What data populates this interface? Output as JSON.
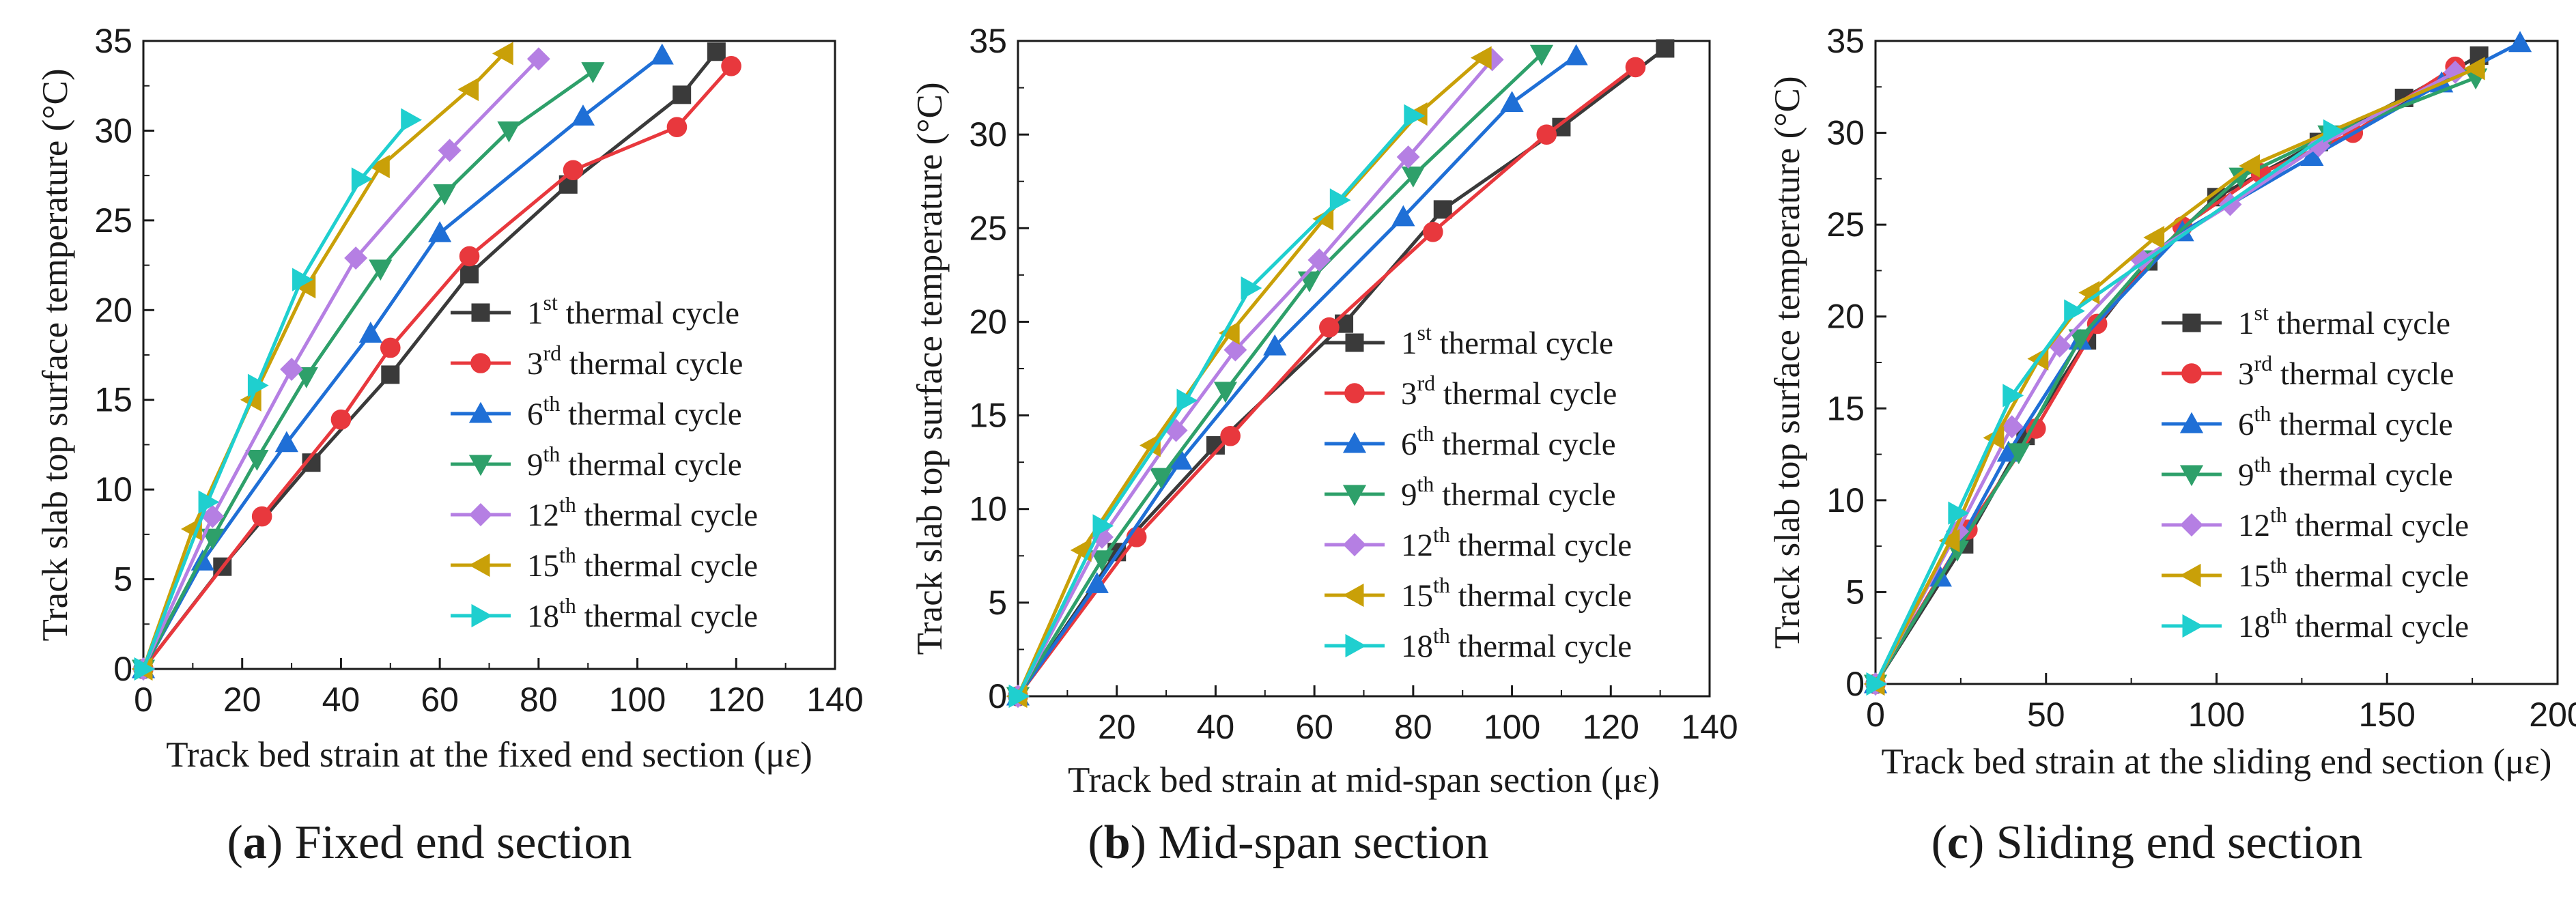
{
  "series_style": [
    {
      "color": "#3a3a3a",
      "marker": "square"
    },
    {
      "color": "#e8383d",
      "marker": "circle"
    },
    {
      "color": "#1f6fd6",
      "marker": "triangle-up"
    },
    {
      "color": "#2ea06a",
      "marker": "triangle-down"
    },
    {
      "color": "#b57fe3",
      "marker": "diamond"
    },
    {
      "color": "#c9a008",
      "marker": "triangle-left"
    },
    {
      "color": "#1fcfcf",
      "marker": "triangle-right"
    }
  ],
  "chart_data": [
    {
      "type": "line",
      "panel": "a",
      "caption_letter": "a",
      "caption_text": "Fixed end section",
      "xlabel": "Track bed strain at the fixed end section (με)",
      "ylabel": "Track slab top surface temperature (°C)",
      "xlim": [
        0,
        140
      ],
      "ylim": [
        0,
        35
      ],
      "xticks": [
        0,
        20,
        40,
        60,
        80,
        100,
        120,
        140
      ],
      "yticks": [
        0,
        5,
        10,
        15,
        20,
        25,
        30,
        35
      ],
      "legend_position": "right-center",
      "series": [
        {
          "ord": "1",
          "sup": "st",
          "name": " thermal cycle",
          "x": [
            0,
            16,
            34,
            50,
            66,
            86,
            109,
            116
          ],
          "y": [
            0,
            5.7,
            11.5,
            16.4,
            22,
            27,
            32,
            34.4
          ]
        },
        {
          "ord": "3",
          "sup": "rd",
          "name": " thermal cycle",
          "x": [
            0,
            24,
            40,
            50,
            66,
            87,
            108,
            119
          ],
          "y": [
            0,
            8.5,
            13.9,
            17.9,
            23,
            27.8,
            30.2,
            33.6
          ]
        },
        {
          "ord": "6",
          "sup": "th",
          "name": " thermal cycle",
          "x": [
            0,
            12,
            29,
            46,
            60,
            89,
            105
          ],
          "y": [
            0,
            6,
            12.6,
            18.7,
            24.3,
            30.8,
            34.2
          ]
        },
        {
          "ord": "9",
          "sup": "th",
          "name": " thermal cycle",
          "x": [
            0,
            14,
            23,
            33,
            48,
            61,
            74,
            91
          ],
          "y": [
            0,
            7.3,
            11.7,
            16.3,
            22.3,
            26.5,
            30,
            33.3
          ]
        },
        {
          "ord": "12",
          "sup": "th",
          "name": " thermal cycle",
          "x": [
            0,
            14,
            30,
            43,
            62,
            80
          ],
          "y": [
            0,
            8.5,
            16.7,
            22.9,
            28.9,
            34
          ]
        },
        {
          "ord": "15",
          "sup": "th",
          "name": " thermal cycle",
          "x": [
            0,
            10,
            22,
            33,
            48,
            66,
            73
          ],
          "y": [
            0,
            7.8,
            15,
            21.3,
            28,
            32.3,
            34.3
          ]
        },
        {
          "ord": "18",
          "sup": "th",
          "name": " thermal cycle",
          "x": [
            0,
            13,
            23,
            32,
            44,
            54
          ],
          "y": [
            0,
            9.3,
            15.8,
            21.7,
            27.3,
            30.6
          ]
        }
      ]
    },
    {
      "type": "line",
      "panel": "b",
      "caption_letter": "b",
      "caption_text": "Mid-span section",
      "xlabel": "Track bed strain at mid-span section (με)",
      "ylabel": "Track slab top surface temperature (°C)",
      "xlim": [
        0,
        140
      ],
      "ylim": [
        0,
        35
      ],
      "xticks": [
        20,
        40,
        60,
        80,
        100,
        120,
        140
      ],
      "yticks": [
        0,
        5,
        10,
        15,
        20,
        25,
        30,
        35
      ],
      "legend_position": "right-center",
      "series": [
        {
          "ord": "1",
          "sup": "st",
          "name": " thermal cycle",
          "x": [
            0,
            20,
            40,
            66,
            86,
            110,
            131
          ],
          "y": [
            0,
            7.7,
            13.4,
            19.9,
            26,
            30.4,
            34.6
          ]
        },
        {
          "ord": "3",
          "sup": "rd",
          "name": " thermal cycle",
          "x": [
            0,
            24,
            43,
            63,
            84,
            107,
            125
          ],
          "y": [
            0,
            8.5,
            13.9,
            19.7,
            24.8,
            30,
            33.6
          ]
        },
        {
          "ord": "6",
          "sup": "th",
          "name": " thermal cycle",
          "x": [
            0,
            16,
            33,
            52,
            78,
            100,
            113
          ],
          "y": [
            0,
            6,
            12.6,
            18.7,
            25.6,
            31.7,
            34.2
          ]
        },
        {
          "ord": "9",
          "sup": "th",
          "name": " thermal cycle",
          "x": [
            0,
            17,
            29,
            42,
            59,
            80,
            106
          ],
          "y": [
            0,
            7.3,
            11.7,
            16.3,
            22.2,
            27.8,
            34.3
          ]
        },
        {
          "ord": "12",
          "sup": "th",
          "name": " thermal cycle",
          "x": [
            0,
            17,
            32,
            44,
            61,
            79,
            96
          ],
          "y": [
            0,
            8.5,
            14.2,
            18.5,
            23.3,
            28.8,
            34
          ]
        },
        {
          "ord": "15",
          "sup": "th",
          "name": " thermal cycle",
          "x": [
            0,
            13,
            27,
            43,
            62,
            81,
            94
          ],
          "y": [
            0,
            7.8,
            13.4,
            19.4,
            25.5,
            31.1,
            34.1
          ]
        },
        {
          "ord": "18",
          "sup": "th",
          "name": " thermal cycle",
          "x": [
            0,
            17,
            34,
            47,
            65,
            80
          ],
          "y": [
            0,
            9.1,
            15.8,
            21.8,
            26.5,
            31
          ]
        }
      ]
    },
    {
      "type": "line",
      "panel": "c",
      "caption_letter": "c",
      "caption_text": "Sliding end section",
      "xlabel": "Track bed strain at the sliding end section (με)",
      "ylabel": "Track slab top surface temperature (°C)",
      "xlim": [
        0,
        200
      ],
      "ylim": [
        0,
        35
      ],
      "xticks": [
        0,
        50,
        100,
        150,
        200
      ],
      "yticks": [
        0,
        5,
        10,
        15,
        20,
        25,
        30,
        35
      ],
      "legend_position": "right-center",
      "series": [
        {
          "ord": "1",
          "sup": "st",
          "name": " thermal cycle",
          "x": [
            0,
            26,
            44,
            62,
            80,
            100,
            130,
            155,
            177
          ],
          "y": [
            0,
            7.6,
            13.5,
            18.7,
            23,
            26.5,
            29.5,
            31.9,
            34.2
          ]
        },
        {
          "ord": "3",
          "sup": "rd",
          "name": " thermal cycle",
          "x": [
            0,
            27,
            47,
            65,
            90,
            113,
            140,
            170
          ],
          "y": [
            0,
            8.4,
            13.9,
            19.6,
            24.9,
            27.8,
            30,
            33.6
          ]
        },
        {
          "ord": "6",
          "sup": "th",
          "name": " thermal cycle",
          "x": [
            0,
            19,
            39,
            60,
            90,
            128,
            166,
            189
          ],
          "y": [
            0,
            5.8,
            12.6,
            18.7,
            24.6,
            28.7,
            32.7,
            34.9
          ]
        },
        {
          "ord": "9",
          "sup": "th",
          "name": " thermal cycle",
          "x": [
            0,
            24,
            42,
            60,
            80,
            107,
            133,
            176
          ],
          "y": [
            0,
            7.3,
            12.6,
            18.8,
            23.1,
            27.6,
            29.9,
            33
          ]
        },
        {
          "ord": "12",
          "sup": "th",
          "name": " thermal cycle",
          "x": [
            0,
            24,
            40,
            54,
            78,
            104,
            130,
            170
          ],
          "y": [
            0,
            8.3,
            14,
            18.4,
            23.1,
            26.1,
            29.3,
            33.3
          ]
        },
        {
          "ord": "15",
          "sup": "th",
          "name": " thermal cycle",
          "x": [
            0,
            22,
            35,
            48,
            63,
            82,
            110,
            176
          ],
          "y": [
            0,
            7.8,
            13.4,
            17.7,
            21.3,
            24.3,
            28.2,
            33.5
          ]
        },
        {
          "ord": "18",
          "sup": "th",
          "name": " thermal cycle",
          "x": [
            0,
            24,
            40,
            58,
            134
          ],
          "y": [
            0,
            9.3,
            15.7,
            20.3,
            30.1
          ]
        }
      ]
    }
  ]
}
